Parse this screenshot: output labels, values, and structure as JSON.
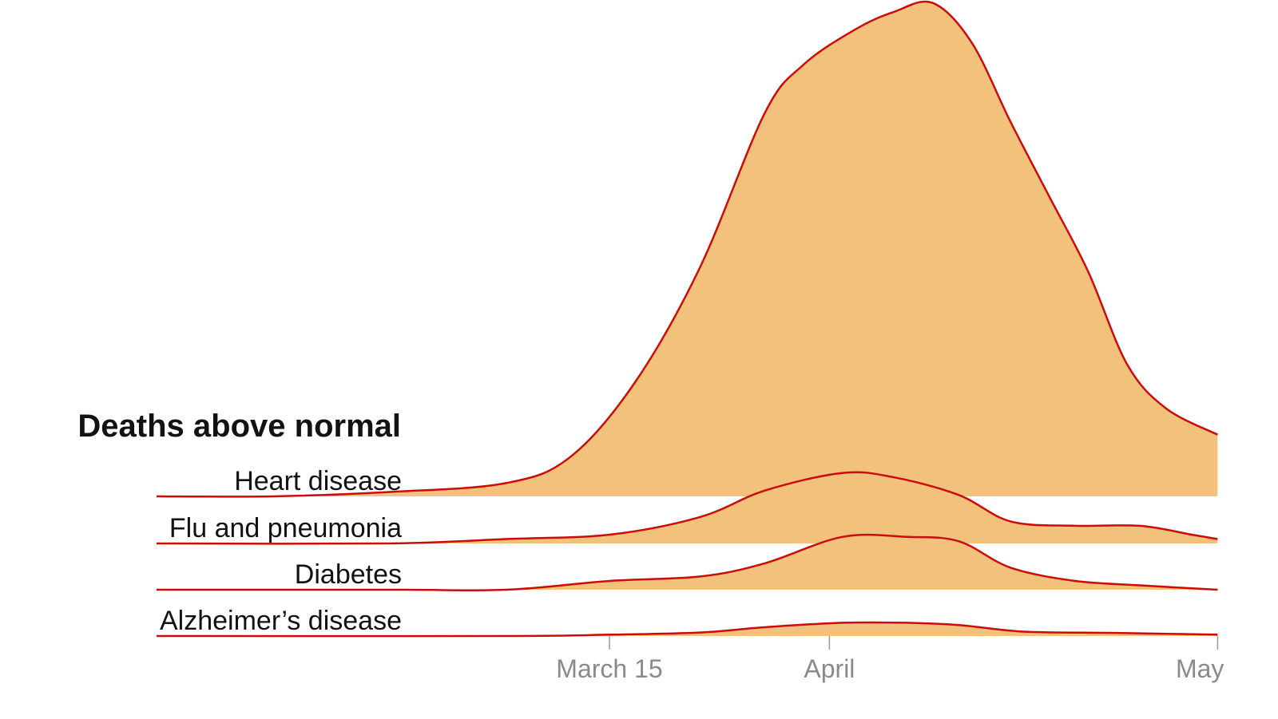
{
  "chart_data": {
    "type": "area",
    "title": "Deaths above normal",
    "x_ticks": [
      {
        "date": "2020-03-15",
        "label": "March 15"
      },
      {
        "date": "2020-04-01",
        "label": "April"
      },
      {
        "date": "2020-05-01",
        "label": "May"
      }
    ],
    "colors": {
      "fill": "#f2c27c",
      "line": "#cc0b0b",
      "tick": "#9a9a9a"
    },
    "series": [
      {
        "name": "Heart disease",
        "x": [
          "2020-02-09",
          "2020-02-18",
          "2020-02-27",
          "2020-03-07",
          "2020-03-12",
          "2020-03-17",
          "2020-03-22",
          "2020-03-27",
          "2020-03-30",
          "2020-04-03",
          "2020-04-06",
          "2020-04-09",
          "2020-04-12",
          "2020-04-15",
          "2020-04-18",
          "2020-04-21",
          "2020-04-24",
          "2020-04-27",
          "2020-05-01"
        ],
        "values": [
          0,
          0,
          0.01,
          0.03,
          0.09,
          0.26,
          0.52,
          0.87,
          0.98,
          1.06,
          1.1,
          1.12,
          1.03,
          0.85,
          0.68,
          0.51,
          0.3,
          0.2,
          0.14
        ]
      },
      {
        "name": "Flu and pneumonia",
        "x": [
          "2020-02-09",
          "2020-02-27",
          "2020-03-07",
          "2020-03-15",
          "2020-03-22",
          "2020-03-27",
          "2020-04-02",
          "2020-04-06",
          "2020-04-11",
          "2020-04-15",
          "2020-04-20",
          "2020-04-25",
          "2020-04-29",
          "2020-05-01"
        ],
        "values": [
          0,
          0,
          0.01,
          0.02,
          0.06,
          0.12,
          0.16,
          0.15,
          0.11,
          0.05,
          0.04,
          0.04,
          0.02,
          0.01
        ]
      },
      {
        "name": "Diabetes",
        "x": [
          "2020-02-09",
          "2020-02-27",
          "2020-03-07",
          "2020-03-15",
          "2020-03-22",
          "2020-03-27",
          "2020-04-02",
          "2020-04-07",
          "2020-04-11",
          "2020-04-15",
          "2020-04-20",
          "2020-04-25",
          "2020-05-01"
        ],
        "values": [
          0,
          0,
          0,
          0.02,
          0.03,
          0.06,
          0.12,
          0.12,
          0.11,
          0.05,
          0.02,
          0.01,
          0
        ]
      },
      {
        "name": "Alzheimer’s disease",
        "x": [
          "2020-02-09",
          "2020-03-07",
          "2020-03-15",
          "2020-03-22",
          "2020-03-27",
          "2020-04-02",
          "2020-04-07",
          "2020-04-11",
          "2020-04-16",
          "2020-04-23",
          "2020-05-01"
        ],
        "values": [
          0,
          0,
          0.003,
          0.008,
          0.02,
          0.03,
          0.03,
          0.025,
          0.01,
          0.007,
          0.003
        ]
      }
    ]
  }
}
